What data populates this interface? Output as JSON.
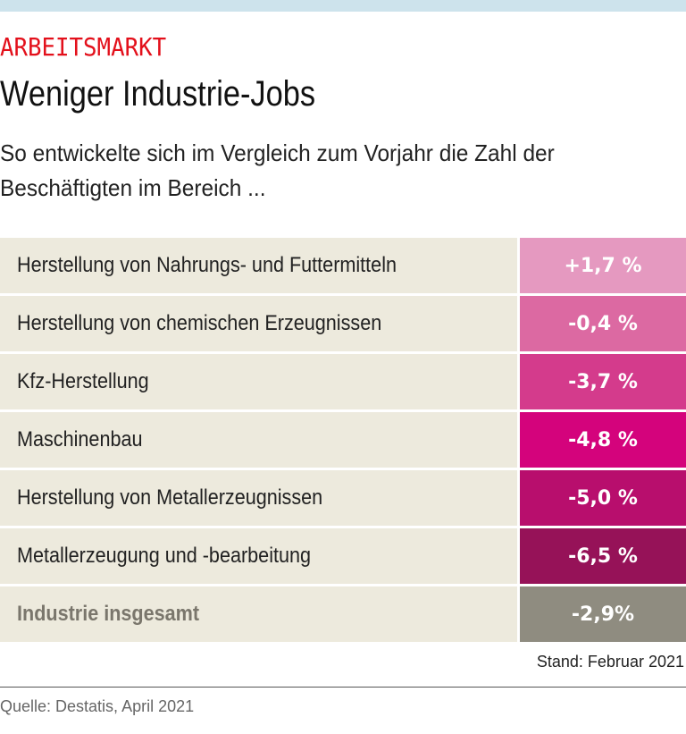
{
  "kicker": "ARBEITSMARKT",
  "title": "Weniger Industrie-Jobs",
  "subtitle": "So entwickelte sich im Vergleich zum Vorjahr die Zahl der Beschäftigten im Bereich ...",
  "chart_data": {
    "type": "table",
    "rows": [
      {
        "label": "Herstellung von Nahrungs- und Futtermitteln",
        "value": 1.7,
        "display": "+1,7 %",
        "color": "#e599c0"
      },
      {
        "label": "Herstellung von chemischen Erzeugnissen",
        "value": -0.4,
        "display": "-0,4 %",
        "color": "#dc69a2"
      },
      {
        "label": "Kfz-Herstellung",
        "value": -3.7,
        "display": "-3,7 %",
        "color": "#d43b8c"
      },
      {
        "label": "Maschinenbau",
        "value": -4.8,
        "display": "-4,8 %",
        "color": "#d4037c"
      },
      {
        "label": "Herstellung von Metallerzeugnissen",
        "value": -5.0,
        "display": "-5,0 %",
        "color": "#b80e6d"
      },
      {
        "label": "Metallerzeugung und -bearbeitung",
        "value": -6.5,
        "display": "-6,5 %",
        "color": "#961258"
      },
      {
        "label": "Industrie insgesamt",
        "value": -2.9,
        "display": "-2,9%",
        "color": "#8f8c80",
        "total": true
      }
    ]
  },
  "stand": "Stand: Februar 2021",
  "source": "Quelle: Destatis, April 2021"
}
